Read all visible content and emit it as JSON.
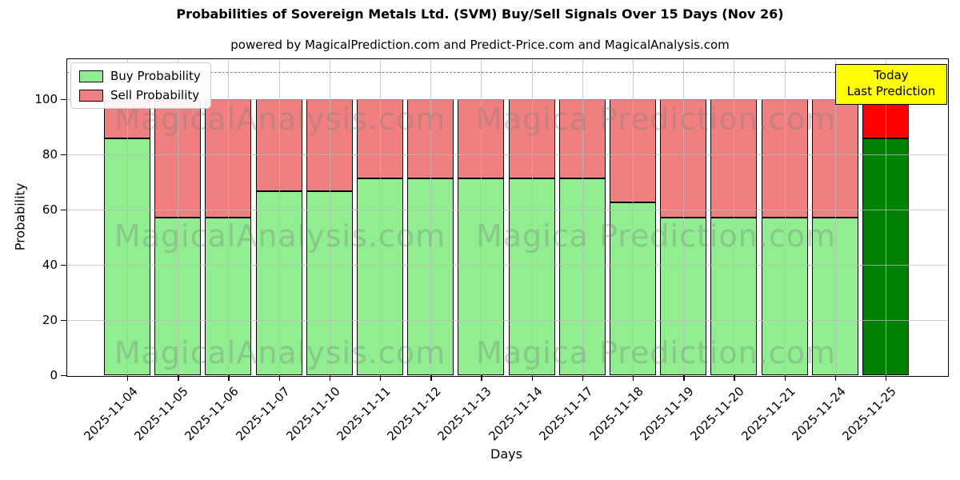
{
  "title": "Probabilities of Sovereign Metals Ltd. (SVM) Buy/Sell Signals Over 15 Days (Nov 26)",
  "subtitle": "powered by MagicalPrediction.com and Predict-Price.com and MagicalAnalysis.com",
  "legend": {
    "items": [
      {
        "label": "Buy Probability",
        "color": "#90EE90"
      },
      {
        "label": "Sell Probability",
        "color": "#F08080"
      }
    ]
  },
  "annotation": {
    "line1": "Today",
    "line2": "Last Prediction",
    "bg_color": "#FFFF00"
  },
  "axes": {
    "ylabel": "Probability",
    "xlabel": "Days",
    "yticks": [
      0,
      20,
      40,
      60,
      80,
      100
    ]
  },
  "watermarks": {
    "left_text": "MagicalAnalysis.com",
    "right_text": "Magica Prediction.com"
  },
  "chart_data": {
    "type": "bar",
    "stacked": true,
    "title": "Probabilities of Sovereign Metals Ltd. (SVM) Buy/Sell Signals Over 15 Days (Nov 26)",
    "xlabel": "Days",
    "ylabel": "Probability",
    "ylim": [
      0,
      114.8
    ],
    "grid": true,
    "legend_position": "upper left",
    "dashed_reference_line_y": 110,
    "categories": [
      "2025-11-04",
      "2025-11-05",
      "2025-11-06",
      "2025-11-07",
      "2025-11-10",
      "2025-11-11",
      "2025-11-12",
      "2025-11-13",
      "2025-11-14",
      "2025-11-17",
      "2025-11-18",
      "2025-11-19",
      "2025-11-20",
      "2025-11-21",
      "2025-11-24",
      "2025-11-25"
    ],
    "series": [
      {
        "name": "Buy Probability",
        "values": [
          85.7,
          57.1,
          57.1,
          66.7,
          66.7,
          71.4,
          71.4,
          71.4,
          71.4,
          71.4,
          62.5,
          57.1,
          57.1,
          57.1,
          57.1,
          85.7
        ]
      },
      {
        "name": "Sell Probability",
        "values": [
          14.3,
          42.9,
          42.9,
          33.3,
          33.3,
          28.6,
          28.6,
          28.6,
          28.6,
          28.6,
          37.5,
          42.9,
          42.9,
          42.9,
          42.9,
          14.3
        ]
      }
    ],
    "today_index": 15,
    "colors": {
      "buy": "#90EE90",
      "sell": "#F08080",
      "buy_today": "#008000",
      "sell_today": "#FF0000",
      "bar_edge": "#000000"
    }
  }
}
